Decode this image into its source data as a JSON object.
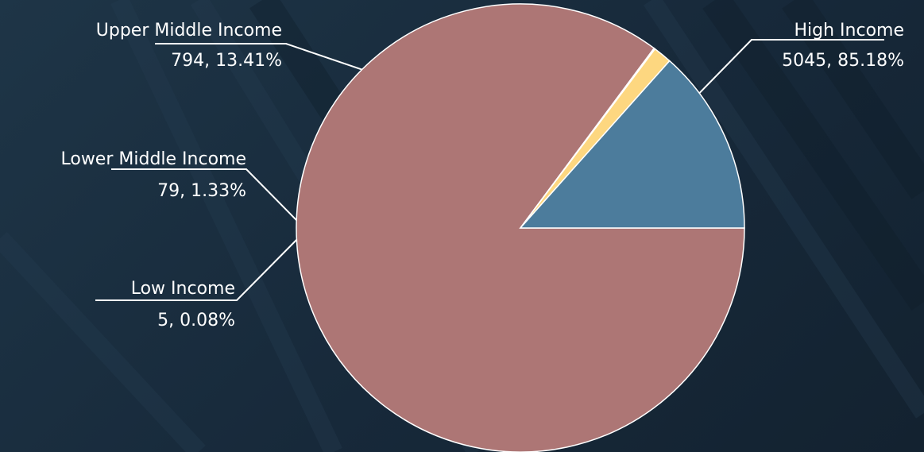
{
  "chart_data": {
    "type": "pie",
    "title": "",
    "slices": [
      {
        "label": "High Income",
        "value": 5045,
        "percent": "85.18%",
        "value_text": "5045, 85.18%",
        "color": "#ad7675"
      },
      {
        "label": "Low Income",
        "value": 5,
        "percent": "0.08%",
        "value_text": "5, 0.08%",
        "color": "#8a8a8a"
      },
      {
        "label": "Lower Middle Income",
        "value": 79,
        "percent": "1.33%",
        "value_text": "79, 1.33%",
        "color": "#fdd780"
      },
      {
        "label": "Upper Middle Income",
        "value": 794,
        "percent": "13.41%",
        "value_text": "794, 13.41%",
        "color": "#4c7c9c"
      }
    ],
    "legend": "none",
    "label_style": "outside-with-leader-lines"
  },
  "colors": {
    "background": "#1b2f40",
    "slice_border": "#ffffff",
    "label_text": "#ffffff",
    "leader_line": "#ffffff"
  }
}
